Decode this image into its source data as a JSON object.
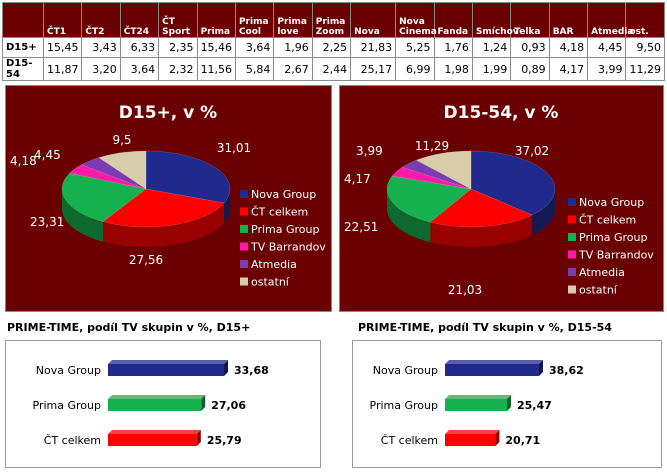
{
  "table": {
    "headers": [
      "",
      "ČT1",
      "ČT2",
      "ČT24",
      "ČT Sport",
      "Prima",
      "Prima Cool",
      "Prima love",
      "Prima Zoom",
      "Nova",
      "Nova Cinema",
      "Fanda",
      "Smíchov",
      "Telka",
      "BAR",
      "Atmedia",
      "ost."
    ],
    "rows": [
      {
        "label": "D15+",
        "values": [
          "15,45",
          "3,43",
          "6,33",
          "2,35",
          "15,46",
          "3,64",
          "1,96",
          "2,25",
          "21,83",
          "5,25",
          "1,76",
          "1,24",
          "0,93",
          "4,18",
          "4,45",
          "9,50"
        ]
      },
      {
        "label": "D15-54",
        "values": [
          "11,87",
          "3,20",
          "3,64",
          "2,32",
          "11,56",
          "5,84",
          "2,67",
          "2,44",
          "25,17",
          "6,99",
          "1,98",
          "1,99",
          "0,89",
          "4,17",
          "3,99",
          "11,29"
        ]
      }
    ]
  },
  "legend_items": [
    {
      "name": "Nova Group",
      "color": "#1f2a8c"
    },
    {
      "name": "ČT celkem",
      "color": "#ff0000"
    },
    {
      "name": "Prima Group",
      "color": "#14b14e"
    },
    {
      "name": "TV Barrandov",
      "color": "#ff1aa8"
    },
    {
      "name": "Atmedia",
      "color": "#7a3cb0"
    },
    {
      "name": "ostatní",
      "color": "#d8ccaa"
    }
  ],
  "chart_data": [
    {
      "type": "pie",
      "title": "D15+, v %",
      "categories": [
        "Nova Group",
        "ČT celkem",
        "Prima Group",
        "TV Barrandov",
        "Atmedia",
        "ostatní"
      ],
      "values": [
        31.01,
        27.56,
        23.31,
        4.18,
        4.45,
        9.5
      ],
      "labels": [
        "31,01",
        "27,56",
        "23,31",
        "4,18",
        "4,45",
        "9,5"
      ],
      "legend": "right"
    },
    {
      "type": "pie",
      "title": "D15-54, v %",
      "categories": [
        "Nova Group",
        "ČT celkem",
        "Prima Group",
        "TV Barrandov",
        "Atmedia",
        "ostatní"
      ],
      "values": [
        37.02,
        21.03,
        22.51,
        4.17,
        3.99,
        11.29
      ],
      "labels": [
        "37,02",
        "21,03",
        "22,51",
        "4,17",
        "3,99",
        "11,29"
      ],
      "legend": "right"
    },
    {
      "type": "bar",
      "title": "PRIME-TIME, podíl TV skupin v %, D15+",
      "categories": [
        "Nova Group",
        "Prima Group",
        "ČT celkem"
      ],
      "values": [
        33.68,
        27.06,
        25.79
      ],
      "labels": [
        "33,68",
        "27,06",
        "25,79"
      ],
      "colors": [
        "#1f2a8c",
        "#14b14e",
        "#ff0000"
      ]
    },
    {
      "type": "bar",
      "title": "PRIME-TIME, podíl TV skupin v %, D15-54",
      "categories": [
        "Nova Group",
        "Prima Group",
        "ČT celkem"
      ],
      "values": [
        38.62,
        25.47,
        20.71
      ],
      "labels": [
        "38,62",
        "25,47",
        "20,71"
      ],
      "colors": [
        "#1f2a8c",
        "#14b14e",
        "#ff0000"
      ]
    }
  ]
}
